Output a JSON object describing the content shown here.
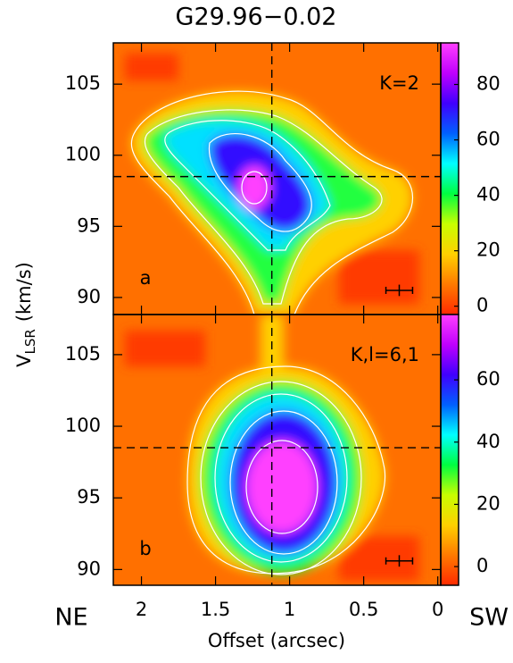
{
  "figure": {
    "title": "G29.96−0.02",
    "xlabel": "Offset (arcsec)",
    "ylabel_main": "V",
    "ylabel_sub": "LSR",
    "ylabel_rest": "(km/s)",
    "left_label": "NE",
    "right_label": "SW"
  },
  "chart_data": [
    {
      "type": "heatmap",
      "label": "a",
      "annotation": "K=2",
      "xlim": [
        2.19,
        -0.02
      ],
      "xticks": [
        2,
        1.5,
        1,
        0.5,
        0
      ],
      "ylim": [
        88.8,
        107.9
      ],
      "yticks": [
        90,
        95,
        100,
        105
      ],
      "clim": [
        -3,
        95
      ],
      "cticks": [
        0,
        20,
        40,
        60,
        80
      ],
      "colormap": [
        "#ff2a00",
        "#ff7a00",
        "#ffd000",
        "#c8ff00",
        "#00ff40",
        "#00ffff",
        "#0060ff",
        "#4000ff",
        "#c000ff",
        "#ff40ff"
      ],
      "dashed_x": 1.12,
      "dashed_y": 98.5,
      "error_bar": {
        "x": 0.26,
        "y": 90.5,
        "xerr": 0.09,
        "yerr": 0.4
      }
    },
    {
      "type": "heatmap",
      "label": "b",
      "annotation": "K,l=6,1",
      "xlim": [
        2.19,
        -0.02
      ],
      "xticks": [
        2,
        1.5,
        1,
        0.5,
        0
      ],
      "ylim": [
        88.9,
        107.8
      ],
      "yticks": [
        90,
        95,
        100,
        105
      ],
      "clim": [
        -6,
        81
      ],
      "cticks": [
        0,
        20,
        40,
        60
      ],
      "colormap": [
        "#ff2a00",
        "#ff7a00",
        "#ffd000",
        "#c8ff00",
        "#00ff40",
        "#00ffff",
        "#0060ff",
        "#4000ff",
        "#c000ff",
        "#ff40ff"
      ],
      "dashed_x": 1.12,
      "dashed_y": 98.5,
      "error_bar": {
        "x": 0.26,
        "y": 90.6,
        "xerr": 0.09,
        "yerr": 0.4
      }
    }
  ]
}
